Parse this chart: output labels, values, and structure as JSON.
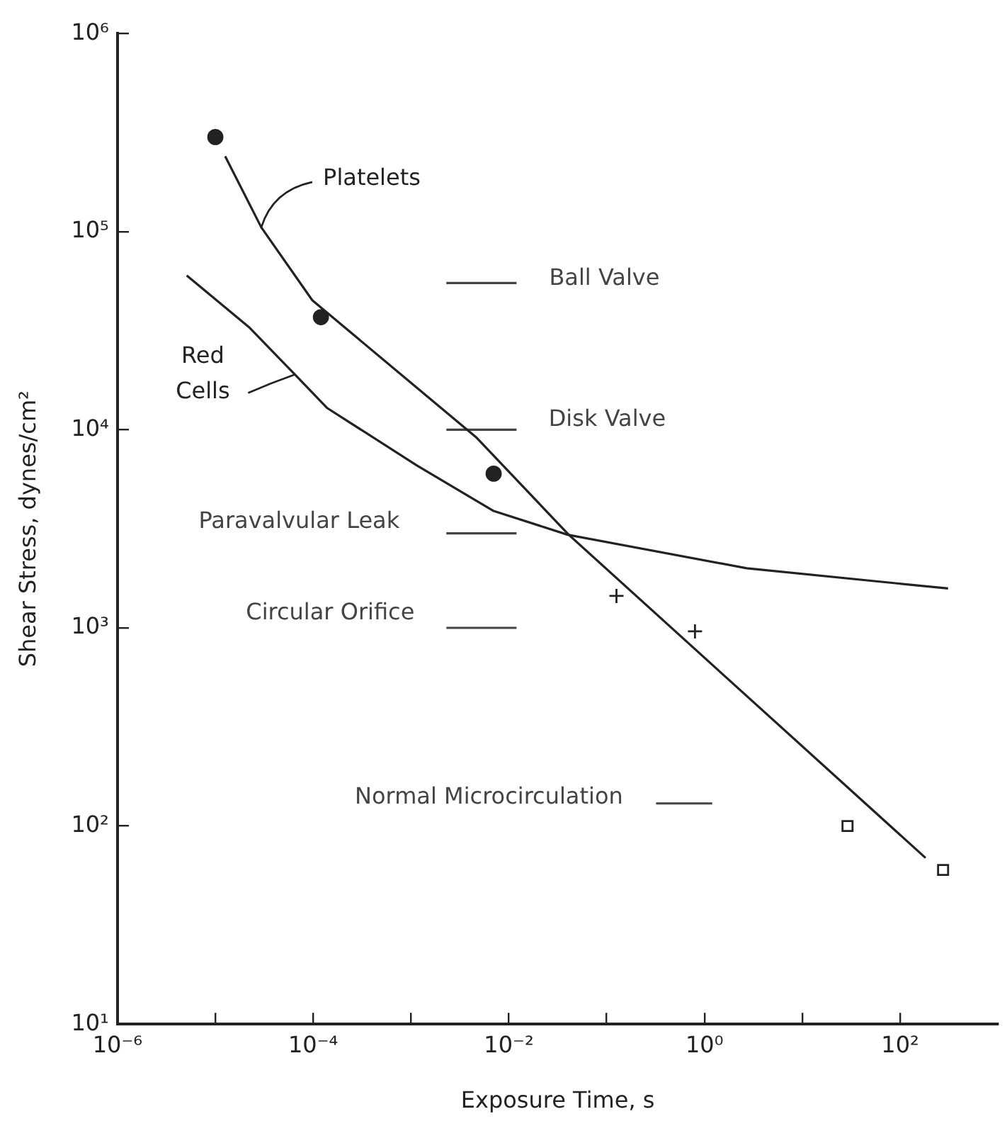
{
  "chart_data": {
    "type": "line",
    "xlabel": "Exposure Time, s",
    "ylabel": "Shear Stress, dynes/cm²",
    "log": "xy",
    "grid": false,
    "legend": false,
    "xlim": [
      1e-06,
      1000
    ],
    "ylim": [
      10,
      1000000
    ],
    "xticks": [
      {
        "value": 1e-06,
        "label": "10⁻⁶"
      },
      {
        "value": 1e-05,
        "label": null
      },
      {
        "value": 0.0001,
        "label": "10⁻⁴"
      },
      {
        "value": 0.001,
        "label": null
      },
      {
        "value": 0.01,
        "label": "10⁻²"
      },
      {
        "value": 0.1,
        "label": null
      },
      {
        "value": 1,
        "label": "10⁰"
      },
      {
        "value": 10,
        "label": null
      },
      {
        "value": 100,
        "label": "10²"
      }
    ],
    "yticks": [
      {
        "value": 10,
        "label": "10¹"
      },
      {
        "value": 100,
        "label": "10²"
      },
      {
        "value": 1000,
        "label": "10³"
      },
      {
        "value": 10000,
        "label": "10⁴"
      },
      {
        "value": 100000,
        "label": "10⁵"
      },
      {
        "value": 1000000,
        "label": "10⁶"
      }
    ],
    "series": [
      {
        "color": "#222222",
        "marker": "none",
        "x": [
          1.26e-05,
          2.95e-05,
          9.8e-05,
          0.0047,
          0.041,
          182
        ],
        "values": [
          240000,
          105000,
          45000,
          9100,
          2950,
          69
        ]
      },
      {
        "color": "#222222",
        "marker": "none",
        "x": [
          5.1e-06,
          2.2e-05,
          6.5e-05,
          0.000138,
          0.00115,
          0.0069,
          0.04,
          2.7,
          309
        ],
        "values": [
          60000,
          33000,
          19000,
          12900,
          6600,
          3900,
          2950,
          2000,
          1580
        ]
      },
      {
        "name": "Ball Valve",
        "color": "#444444",
        "marker": "none",
        "x": [
          0.0023,
          0.012
        ],
        "values": [
          55000,
          55000
        ]
      },
      {
        "name": "Disk Valve",
        "color": "#444444",
        "marker": "none",
        "x": [
          0.0023,
          0.012
        ],
        "values": [
          10000,
          10000
        ]
      },
      {
        "name": "Paravalvular Leak",
        "color": "#444444",
        "marker": "none",
        "x": [
          0.0023,
          0.012
        ],
        "values": [
          3000,
          3000
        ]
      },
      {
        "name": "Circular Orifice",
        "color": "#444444",
        "marker": "none",
        "x": [
          0.0023,
          0.012
        ],
        "values": [
          1000,
          1000
        ]
      },
      {
        "name": "Normal Microcirculation",
        "color": "#444444",
        "marker": "none",
        "x": [
          0.32,
          1.2
        ],
        "values": [
          130,
          130
        ]
      },
      {
        "type": "scatter",
        "color": "#222222",
        "marker": "circle",
        "x": [
          1e-05,
          0.00012,
          0.007
        ],
        "values": [
          300000,
          37000,
          6000
        ]
      },
      {
        "type": "scatter",
        "color": "#222222",
        "marker": "cross",
        "x": [
          0.126,
          0.8
        ],
        "values": [
          1450,
          960
        ]
      },
      {
        "type": "scatter",
        "color": "#222222",
        "marker": "square",
        "x": [
          29,
          275
        ],
        "values": [
          100,
          60
        ]
      }
    ],
    "annotations": [
      {
        "text": "Platelets",
        "x": 2.95e-05,
        "y": 105000
      },
      {
        "text": "Red Cells",
        "x": 6.5e-05,
        "y": 19000
      }
    ]
  }
}
